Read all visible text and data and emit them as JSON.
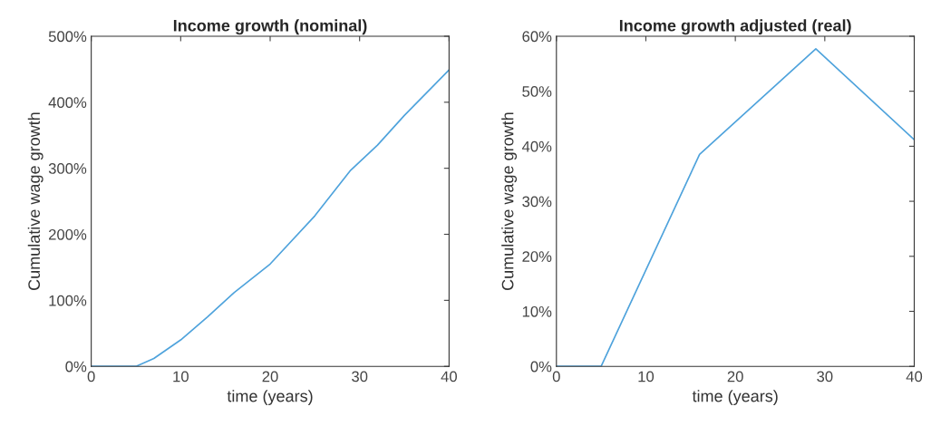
{
  "chart_data": [
    {
      "type": "line",
      "title": "Income growth (nominal)",
      "xlabel": "time (years)",
      "ylabel": "Cumulative wage growth",
      "x": [
        0,
        5,
        7,
        10,
        13,
        16,
        20,
        25,
        29,
        32,
        35,
        40
      ],
      "series": [
        {
          "color": "#4fa3dc",
          "values": [
            0,
            0,
            12,
            40,
            75,
            112,
            155,
            228,
            297,
            335,
            380,
            449
          ]
        }
      ],
      "xlim": [
        0,
        40
      ],
      "xticks": [
        0,
        10,
        20,
        30,
        40
      ],
      "ylim": [
        0,
        500
      ],
      "yticks": [
        {
          "value": 0,
          "label": "0%"
        },
        {
          "value": 100,
          "label": "100%"
        },
        {
          "value": 200,
          "label": "200%"
        },
        {
          "value": 300,
          "label": "300%"
        },
        {
          "value": 400,
          "label": "400%"
        },
        {
          "value": 500,
          "label": "500%"
        }
      ],
      "grid": false,
      "legend": false
    },
    {
      "type": "line",
      "title": "Income growth adjusted (real)",
      "xlabel": "time (years)",
      "ylabel": "Cumulative wage growth",
      "x": [
        0,
        5,
        16,
        29,
        40
      ],
      "series": [
        {
          "color": "#4fa3dc",
          "values": [
            0,
            0,
            38.5,
            57.7,
            41.2
          ]
        }
      ],
      "xlim": [
        0,
        40
      ],
      "xticks": [
        0,
        10,
        20,
        30,
        40
      ],
      "ylim": [
        0,
        60
      ],
      "yticks": [
        {
          "value": 0,
          "label": "0%"
        },
        {
          "value": 10,
          "label": "10%"
        },
        {
          "value": 20,
          "label": "20%"
        },
        {
          "value": 30,
          "label": "30%"
        },
        {
          "value": 40,
          "label": "40%"
        },
        {
          "value": 50,
          "label": "50%"
        },
        {
          "value": 60,
          "label": "60%"
        }
      ],
      "grid": false,
      "legend": false
    }
  ]
}
